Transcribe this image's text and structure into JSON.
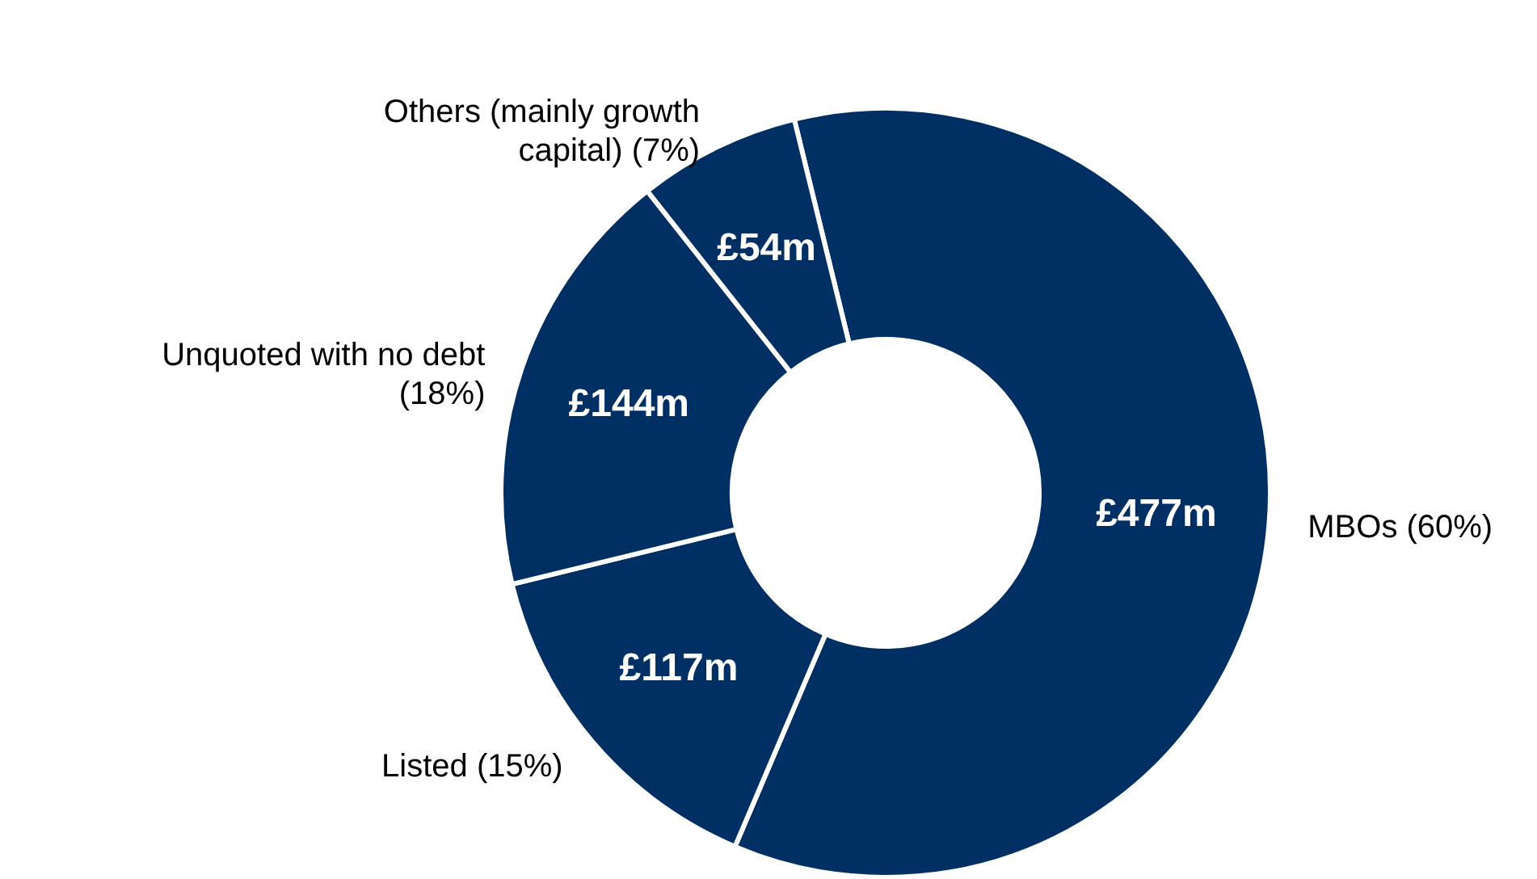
{
  "chart_data": {
    "type": "donut",
    "categories": [
      "MBOs (60%)",
      "Listed  (15%)",
      "Unquoted with no debt\n(18%)",
      "Others (mainly growth\ncapital) (7%)"
    ],
    "values": [
      477,
      117,
      144,
      54
    ],
    "value_labels": [
      "£477m",
      "£117m",
      "£144m",
      "£54m"
    ],
    "colors": [
      "#003063",
      "#003063",
      "#003063",
      "#003063"
    ],
    "legend": false
  }
}
